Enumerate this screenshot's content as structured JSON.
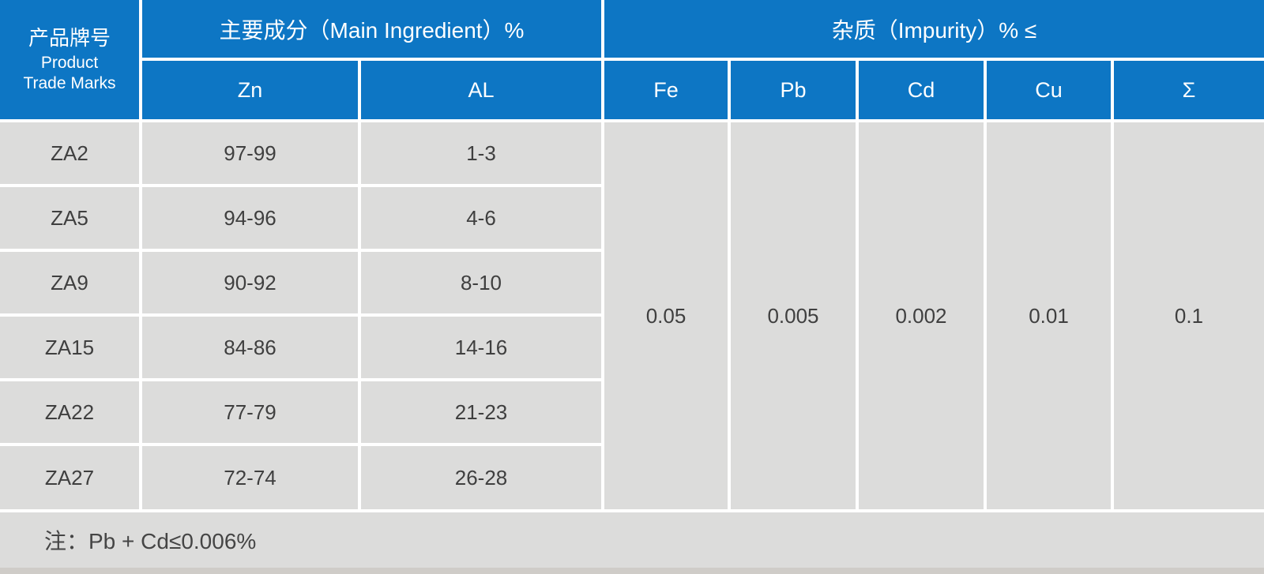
{
  "table": {
    "header": {
      "product_col": {
        "zh": "产品牌号",
        "en_line1": "Product",
        "en_line2": "Trade Marks"
      },
      "group_main": "主要成分（Main Ingredient）%",
      "group_impurity": "杂质（Impurity）% ≤",
      "sub_columns": {
        "zn": "Zn",
        "al": "AL",
        "fe": "Fe",
        "pb": "Pb",
        "cd": "Cd",
        "cu": "Cu",
        "sum": "Σ"
      }
    },
    "rows": [
      {
        "mark": "ZA2",
        "zn": "97-99",
        "al": "1-3"
      },
      {
        "mark": "ZA5",
        "zn": "94-96",
        "al": "4-6"
      },
      {
        "mark": "ZA9",
        "zn": "90-92",
        "al": "8-10"
      },
      {
        "mark": "ZA15",
        "zn": "84-86",
        "al": "14-16"
      },
      {
        "mark": "ZA22",
        "zn": "77-79",
        "al": "21-23"
      },
      {
        "mark": "ZA27",
        "zn": "72-74",
        "al": "26-28"
      }
    ],
    "impurity_limits": {
      "fe": "0.05",
      "pb": "0.005",
      "cd": "0.002",
      "cu": "0.01",
      "sum": "0.1"
    },
    "note": "注：Pb + Cd≤0.006%"
  },
  "colors": {
    "header_blue": "#0d76c4",
    "cell_gray": "#dcdcdb",
    "grid_white": "#ffffff",
    "text_dark": "#3f3f3f",
    "footer_shade": "#cfccc8"
  }
}
